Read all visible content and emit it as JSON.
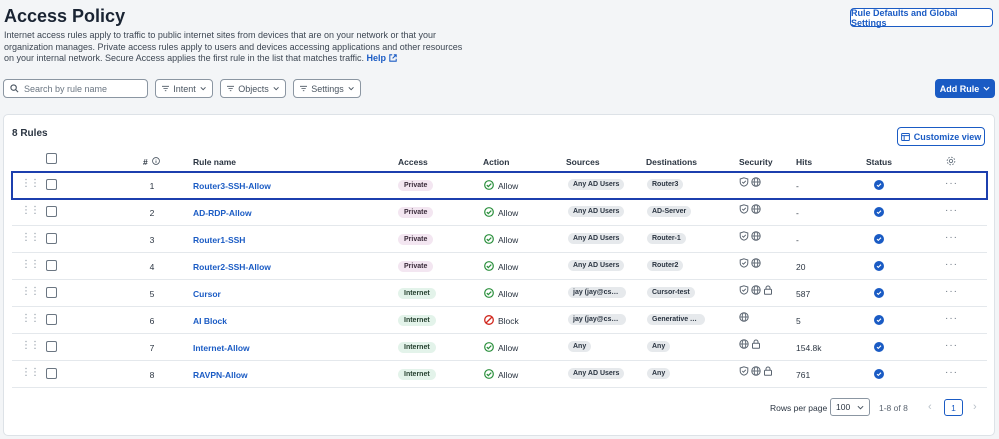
{
  "page": {
    "title": "Access Policy",
    "description": "Internet access rules apply to traffic to public internet sites from devices that are on your network or that your organization manages. Private access rules apply to users and devices accessing applications and other resources on your internal network. Secure Access applies the first rule in the list that matches traffic.",
    "help_link": "Help"
  },
  "buttons": {
    "rule_defaults": "Rule Defaults and Global Settings",
    "add_rule": "Add Rule",
    "customize_view": "Customize view"
  },
  "search": {
    "placeholder": "Search by rule name"
  },
  "filters": {
    "intent": "Intent",
    "objects": "Objects",
    "settings": "Settings"
  },
  "rules_count": "8 Rules",
  "columns": {
    "num": "#",
    "rule_name": "Rule name",
    "access": "Access",
    "action": "Action",
    "sources": "Sources",
    "destinations": "Destinations",
    "security": "Security",
    "hits": "Hits",
    "status": "Status"
  },
  "rows": [
    {
      "num": "1",
      "name": "Router3-SSH-Allow",
      "access": "Private",
      "action": "Allow",
      "source": "Any AD Users",
      "dest": "Router3",
      "security": [
        "shield-icon",
        "globe-icon"
      ],
      "hits": "-"
    },
    {
      "num": "2",
      "name": "AD-RDP-Allow",
      "access": "Private",
      "action": "Allow",
      "source": "Any AD Users",
      "dest": "AD-Server",
      "security": [
        "shield-icon",
        "globe-icon"
      ],
      "hits": "-"
    },
    {
      "num": "3",
      "name": "Router1-SSH",
      "access": "Private",
      "action": "Allow",
      "source": "Any AD Users",
      "dest": "Router-1",
      "security": [
        "shield-icon",
        "globe-icon"
      ],
      "hits": "-"
    },
    {
      "num": "4",
      "name": "Router2-SSH-Allow",
      "access": "Private",
      "action": "Allow",
      "source": "Any AD Users",
      "dest": "Router2",
      "security": [
        "shield-icon",
        "globe-icon"
      ],
      "hits": "20"
    },
    {
      "num": "5",
      "name": "Cursor",
      "access": "Internet",
      "action": "Allow",
      "source": "jay (jay@csa...",
      "dest": "Cursor-test",
      "security": [
        "shield-icon",
        "globe-icon",
        "lock-icon"
      ],
      "hits": "587"
    },
    {
      "num": "6",
      "name": "AI Block",
      "access": "Internet",
      "action": "Block",
      "source": "jay (jay@csa...",
      "dest": "Generative A...",
      "security": [
        "globe-icon"
      ],
      "hits": "5"
    },
    {
      "num": "7",
      "name": "Internet-Allow",
      "access": "Internet",
      "action": "Allow",
      "source": "Any",
      "dest": "Any",
      "security": [
        "globe-icon",
        "lock-icon"
      ],
      "hits": "154.8k"
    },
    {
      "num": "8",
      "name": "RAVPN-Allow",
      "access": "Internet",
      "action": "Allow",
      "source": "Any AD Users",
      "dest": "Any",
      "security": [
        "shield-icon",
        "globe-icon",
        "lock-icon"
      ],
      "hits": "761"
    }
  ],
  "pagination": {
    "rows_per_page_label": "Rows per page",
    "rows_per_page": "100",
    "range": "1-8 of 8",
    "current_page": "1"
  },
  "colors": {
    "accent": "#1a5bc4",
    "private_badge": "#f3e6f1",
    "internet_badge": "#e3f3ea",
    "allow": "#2a8f3c",
    "block": "#d0271d",
    "selected_outline": "#1c3fae"
  }
}
